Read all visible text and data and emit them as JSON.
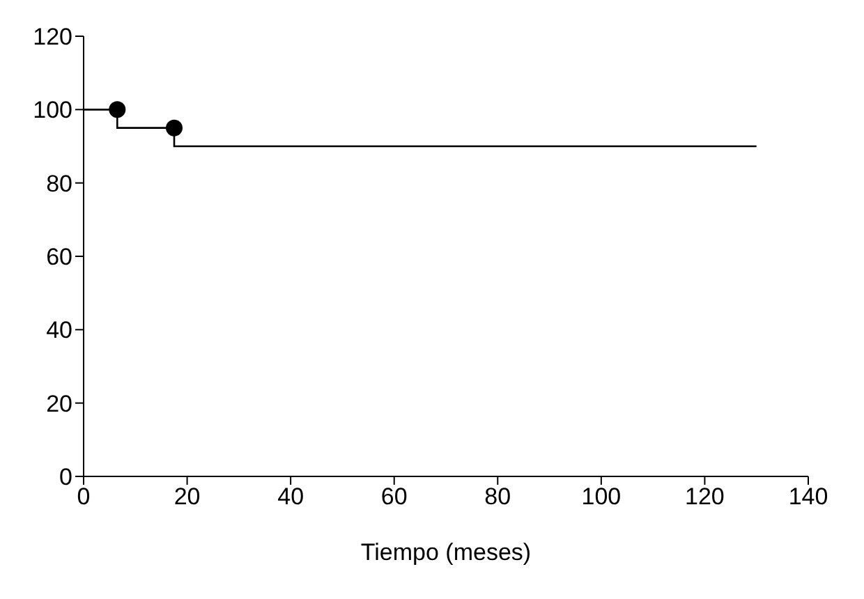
{
  "chart_data": {
    "type": "step",
    "xlabel": "Tiempo (meses)",
    "xlim": [
      0,
      140
    ],
    "xticks": [
      0,
      20,
      40,
      60,
      80,
      100,
      120,
      140
    ],
    "ylim": [
      0,
      120
    ],
    "yticks": [
      0,
      20,
      40,
      60,
      80,
      100,
      120
    ],
    "grid": false,
    "series": [
      {
        "color": "#000000",
        "x": [
          0,
          6.5,
          17.5,
          130
        ],
        "values": [
          100,
          95,
          90,
          90
        ],
        "marker": "none"
      },
      {
        "type": "scatter",
        "color": "#000000",
        "x": [
          6.5,
          17.5
        ],
        "values": [
          100,
          95
        ],
        "marker": "circle"
      }
    ]
  }
}
